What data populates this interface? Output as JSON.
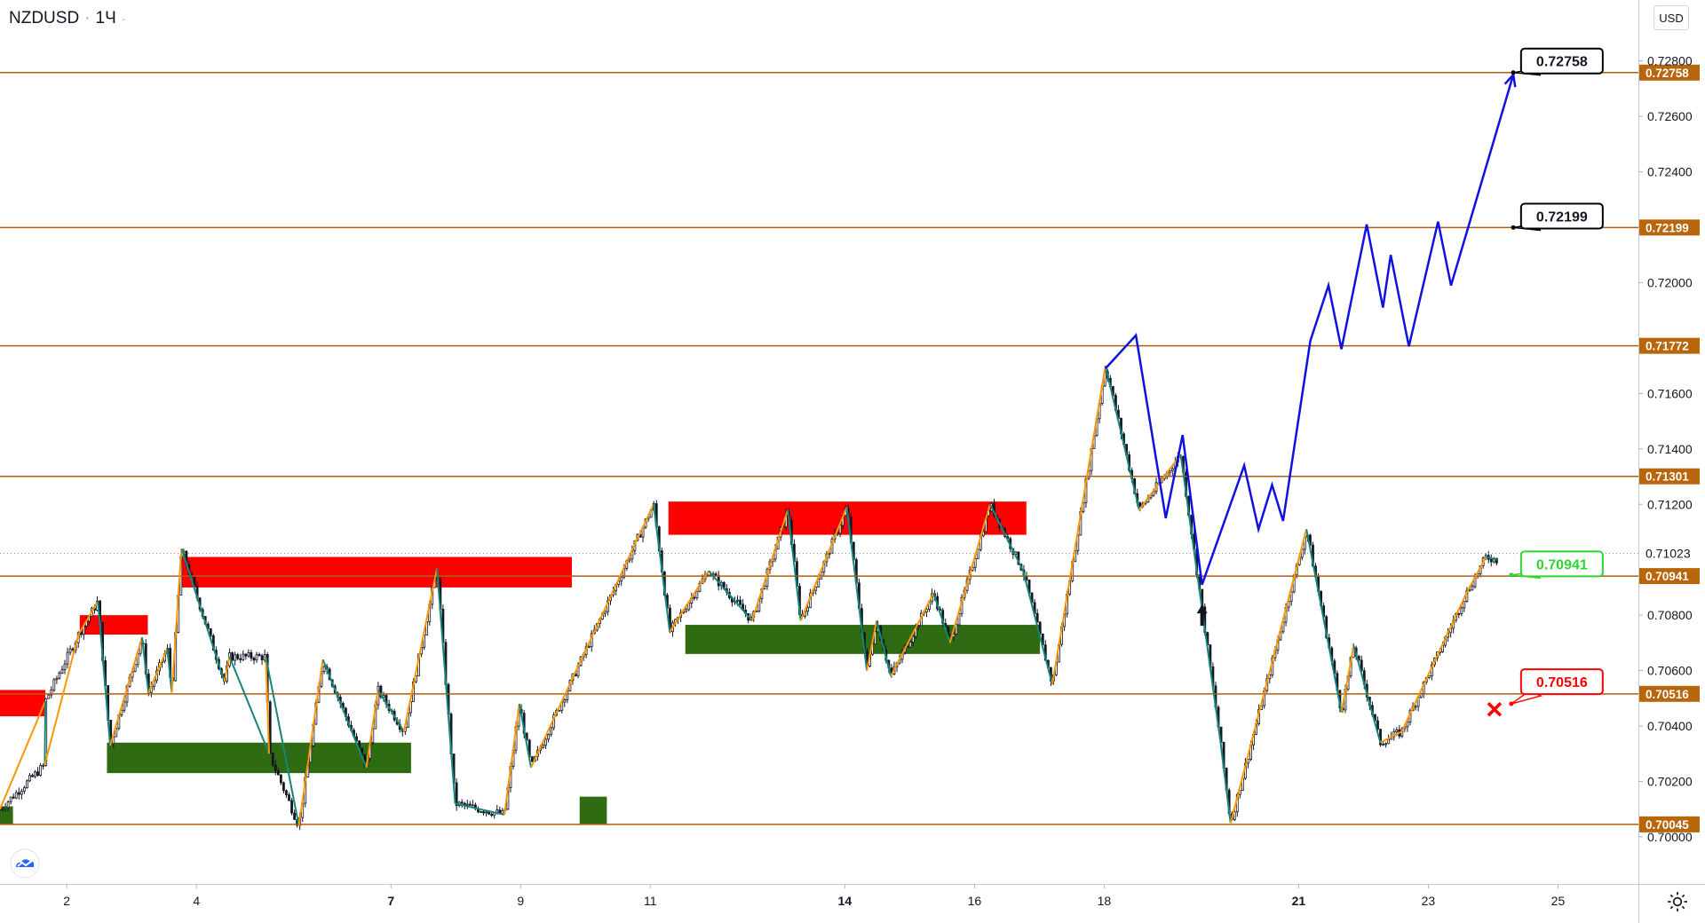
{
  "header": {
    "symbol": "NZDUSD",
    "separator": "·",
    "interval": "1Ч",
    "marker": "·"
  },
  "currency_button": "USD",
  "icons": {
    "settings": "gear-icon",
    "logo": "cloud-logo-icon",
    "arrow": "up-arrow-icon",
    "stop": "x-mark-icon"
  },
  "colors": {
    "level_line": "#b05d10",
    "level_label_bg": "#b8650c",
    "supply_zone": "#ff0000",
    "demand_zone": "#2e6b12",
    "zigzag_up": "#ff9500",
    "zigzag_down": "#14877b",
    "projection": "#1010e0",
    "candle": "#131722",
    "callout_target": "#000000",
    "callout_entry": "#2ed52e",
    "callout_stop": "#ff0000"
  },
  "chart_data": {
    "type": "candlestick",
    "symbol": "NZDUSD",
    "interval": "1Ч",
    "x_tick_labels": [
      {
        "label": "2",
        "day": 2,
        "bold": false
      },
      {
        "label": "4",
        "day": 4,
        "bold": false
      },
      {
        "label": "7",
        "day": 7,
        "bold": true
      },
      {
        "label": "9",
        "day": 9,
        "bold": false
      },
      {
        "label": "11",
        "day": 11,
        "bold": false
      },
      {
        "label": "14",
        "day": 14,
        "bold": true
      },
      {
        "label": "16",
        "day": 16,
        "bold": false
      },
      {
        "label": "18",
        "day": 18,
        "bold": false
      },
      {
        "label": "21",
        "day": 21,
        "bold": true
      },
      {
        "label": "23",
        "day": 23,
        "bold": false
      },
      {
        "label": "25",
        "day": 25,
        "bold": false
      }
    ],
    "x_range_days": [
      0.97,
      26.24
    ],
    "y_ticks": [
      0.7,
      0.702,
      0.704,
      0.706,
      0.708,
      0.712,
      0.714,
      0.716,
      0.72,
      0.724,
      0.726,
      0.728
    ],
    "y_tick_labels": [
      "0.70000",
      "0.70200",
      "0.70400",
      "0.70600",
      "0.70800",
      "0.71200",
      "0.71400",
      "0.71600",
      "0.72000",
      "0.72400",
      "0.72600",
      "0.72800"
    ],
    "y_range": [
      0.6983,
      0.7302
    ],
    "current_price": {
      "value": 0.71023,
      "label": "0.71023"
    },
    "levels": [
      {
        "value": 0.72758,
        "label": "0.72758"
      },
      {
        "value": 0.72199,
        "label": "0.72199"
      },
      {
        "value": 0.71772,
        "label": "0.71772"
      },
      {
        "value": 0.71301,
        "label": "0.71301"
      },
      {
        "value": 0.70941,
        "label": "0.70941"
      },
      {
        "value": 0.70516,
        "label": "0.70516"
      },
      {
        "value": 0.70045,
        "label": "0.70045"
      }
    ],
    "supply_zones": [
      {
        "x0": 0.97,
        "x1": 1.67,
        "y0": 0.70435,
        "y1": 0.7053
      },
      {
        "x0": 2.2,
        "x1": 3.25,
        "y0": 0.7073,
        "y1": 0.708
      },
      {
        "x0": 3.77,
        "x1": 9.79,
        "y0": 0.709,
        "y1": 0.7101
      },
      {
        "x0": 11.28,
        "x1": 16.8,
        "y0": 0.7109,
        "y1": 0.7121
      }
    ],
    "demand_zones": [
      {
        "x0": 0.97,
        "x1": 1.17,
        "y0": 0.70045,
        "y1": 0.7011
      },
      {
        "x0": 2.62,
        "x1": 7.31,
        "y0": 0.7023,
        "y1": 0.7034
      },
      {
        "x0": 9.91,
        "x1": 10.33,
        "y0": 0.70045,
        "y1": 0.70145
      },
      {
        "x0": 11.54,
        "x1": 17.01,
        "y0": 0.7066,
        "y1": 0.70765
      }
    ],
    "zigzag": [
      [
        0.97,
        0.701
      ],
      [
        1.67,
        0.7049
      ],
      [
        1.66,
        0.7026
      ],
      [
        2.18,
        0.7073
      ],
      [
        2.48,
        0.7085
      ],
      [
        2.67,
        0.7033
      ],
      [
        3.16,
        0.7072
      ],
      [
        3.26,
        0.7052
      ],
      [
        3.55,
        0.7068
      ],
      [
        3.62,
        0.7052
      ],
      [
        3.77,
        0.7104
      ],
      [
        4.43,
        0.7056
      ],
      [
        4.51,
        0.7065
      ],
      [
        5.12,
        0.703
      ],
      [
        5.07,
        0.7065
      ],
      [
        5.58,
        0.7004
      ],
      [
        5.95,
        0.7064
      ],
      [
        6.62,
        0.7025
      ],
      [
        6.8,
        0.7053
      ],
      [
        7.2,
        0.7038
      ],
      [
        7.71,
        0.7097
      ],
      [
        7.99,
        0.7012
      ],
      [
        8.75,
        0.7008
      ],
      [
        8.98,
        0.7048
      ],
      [
        9.16,
        0.7025
      ],
      [
        11.05,
        0.712
      ],
      [
        11.3,
        0.7074
      ],
      [
        11.9,
        0.7096
      ],
      [
        12.57,
        0.7078
      ],
      [
        13.12,
        0.7118
      ],
      [
        13.32,
        0.7078
      ],
      [
        14.03,
        0.7119
      ],
      [
        14.34,
        0.706
      ],
      [
        14.49,
        0.7078
      ],
      [
        14.71,
        0.7058
      ],
      [
        15.37,
        0.7088
      ],
      [
        15.62,
        0.707
      ],
      [
        16.24,
        0.712
      ],
      [
        16.75,
        0.7096
      ],
      [
        17.2,
        0.7055
      ],
      [
        18.02,
        0.717
      ],
      [
        18.54,
        0.7118
      ],
      [
        19.18,
        0.7138
      ],
      [
        19.79,
        0.7035
      ],
      [
        19.95,
        0.7005
      ],
      [
        21.12,
        0.7111
      ],
      [
        21.66,
        0.7045
      ],
      [
        21.85,
        0.7069
      ],
      [
        22.26,
        0.7034
      ],
      [
        22.59,
        0.7038
      ],
      [
        23.59,
        0.7088
      ],
      [
        23.89,
        0.7101
      ],
      [
        24.06,
        0.71
      ]
    ],
    "projection_path": [
      [
        18.02,
        0.7169
      ],
      [
        18.49,
        0.7181
      ],
      [
        18.95,
        0.7115
      ],
      [
        19.21,
        0.7145
      ],
      [
        19.51,
        0.7091
      ],
      [
        20.16,
        0.7134
      ],
      [
        20.38,
        0.7111
      ],
      [
        20.59,
        0.7127
      ],
      [
        20.76,
        0.7114
      ],
      [
        21.18,
        0.7179
      ],
      [
        21.46,
        0.7199
      ],
      [
        21.66,
        0.7176
      ],
      [
        22.05,
        0.7221
      ],
      [
        22.3,
        0.7191
      ],
      [
        22.42,
        0.721
      ],
      [
        22.7,
        0.7177
      ],
      [
        23.15,
        0.7222
      ],
      [
        23.35,
        0.7199
      ],
      [
        24.31,
        0.7275
      ]
    ],
    "annotations": [
      {
        "kind": "target",
        "label": "0.72758",
        "anchor": [
          24.31,
          0.72758
        ],
        "box": [
          24.43,
          0.728
        ]
      },
      {
        "kind": "target",
        "label": "0.72199",
        "anchor": [
          24.31,
          0.72199
        ],
        "box": [
          24.43,
          0.7224
        ]
      },
      {
        "kind": "entry",
        "label": "0.70941",
        "anchor": [
          24.28,
          0.70945
        ],
        "box": [
          24.43,
          0.70985
        ]
      },
      {
        "kind": "stop",
        "label": "0.70516",
        "anchor": [
          24.28,
          0.7048
        ],
        "box": [
          24.43,
          0.7056
        ]
      }
    ],
    "up_arrow": {
      "x": 19.51,
      "y": 0.708
    },
    "stop_marker": {
      "x": 24.02,
      "y": 0.7046
    }
  }
}
